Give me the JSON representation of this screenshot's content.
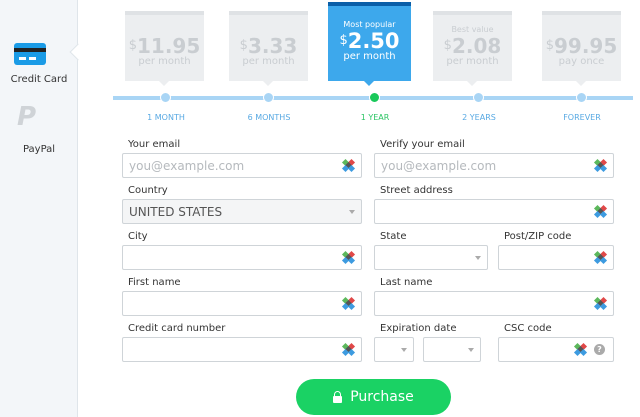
{
  "sidebar": {
    "items": [
      {
        "label": "Credit Card",
        "icon": "credit-card-icon"
      },
      {
        "label": "PayPal",
        "icon": "paypal-icon"
      }
    ]
  },
  "plans": [
    {
      "tag": "",
      "currency": "$",
      "price": "11.95",
      "period": "per month",
      "term": "1 MONTH"
    },
    {
      "tag": "",
      "currency": "$",
      "price": "3.33",
      "period": "per month",
      "term": "6 MONTHS"
    },
    {
      "tag": "Most popular",
      "currency": "$",
      "price": "2.50",
      "period": "per month",
      "term": "1 YEAR"
    },
    {
      "tag": "Best value",
      "currency": "$",
      "price": "2.08",
      "period": "per month",
      "term": "2 YEARS"
    },
    {
      "tag": "",
      "currency": "$",
      "price": "99.95",
      "period": "pay once",
      "term": "FOREVER"
    }
  ],
  "selected_plan": "1 YEAR",
  "form": {
    "email": {
      "label": "Your email",
      "placeholder": "you@example.com"
    },
    "verify_email": {
      "label": "Verify your email",
      "placeholder": "you@example.com"
    },
    "country": {
      "label": "Country",
      "value": "UNITED STATES"
    },
    "street": {
      "label": "Street address"
    },
    "city": {
      "label": "City"
    },
    "state": {
      "label": "State"
    },
    "zip": {
      "label": "Post/ZIP code"
    },
    "first_name": {
      "label": "First name"
    },
    "last_name": {
      "label": "Last name"
    },
    "card_number": {
      "label": "Credit card number"
    },
    "expiration": {
      "label": "Expiration date"
    },
    "csc": {
      "label": "CSC code",
      "help": "?"
    }
  },
  "purchase_label": "Purchase",
  "colors": {
    "accent": "#3da8ec",
    "selected": "#19c85a",
    "button": "#1ad264"
  }
}
